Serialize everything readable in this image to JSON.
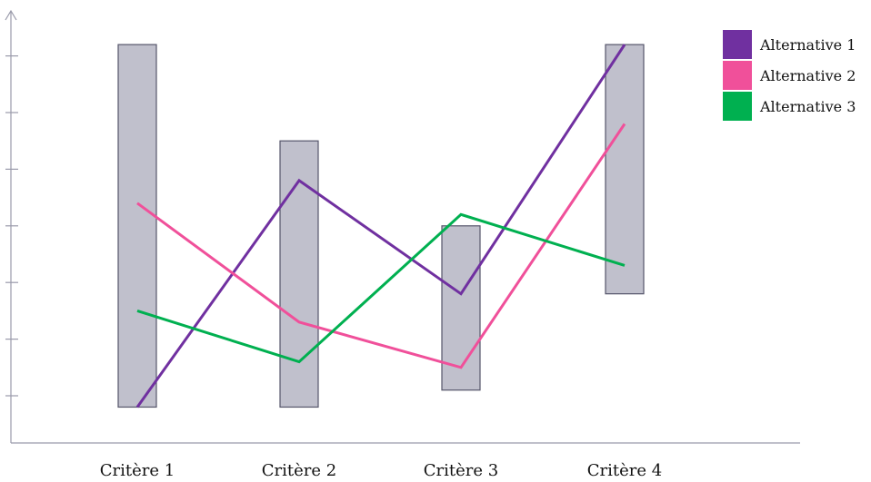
{
  "chart_data": {
    "type": "line",
    "categories": [
      "Critère 1",
      "Critère 2",
      "Critère 3",
      "Critère 4"
    ],
    "ylim": [
      0,
      7
    ],
    "yticks": [
      1,
      2,
      3,
      4,
      5,
      6,
      7
    ],
    "ytick_labels_shown": false,
    "ranges": [
      {
        "low": 0.8,
        "high": 7.2
      },
      {
        "low": 0.8,
        "high": 5.5
      },
      {
        "low": 1.1,
        "high": 4.0
      },
      {
        "low": 2.8,
        "high": 7.2
      }
    ],
    "series": [
      {
        "name": "Alternative 1",
        "color": "#7030a0",
        "values": [
          0.8,
          4.8,
          2.8,
          7.2
        ]
      },
      {
        "name": "Alternative 2",
        "color": "#f0509a",
        "values": [
          4.4,
          2.3,
          1.5,
          5.8
        ]
      },
      {
        "name": "Alternative 3",
        "color": "#00b050",
        "values": [
          2.5,
          1.6,
          4.2,
          3.3
        ]
      }
    ],
    "range_color": "#c0c0cc",
    "legend_position": "top-right",
    "grid": false,
    "title": "",
    "xlabel": "",
    "ylabel": ""
  }
}
